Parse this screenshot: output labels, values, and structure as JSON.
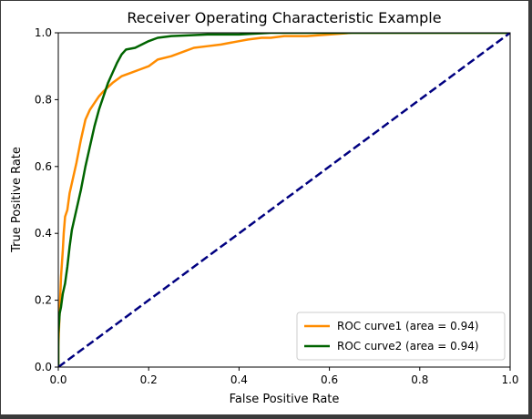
{
  "chart_data": {
    "type": "line",
    "title": "Receiver Operating Characteristic Example",
    "xlabel": "False Positive Rate",
    "ylabel": "True Positive Rate",
    "xlim": [
      0.0,
      1.0
    ],
    "ylim": [
      0.0,
      1.0
    ],
    "xticks": [
      "0.0",
      "0.2",
      "0.4",
      "0.6",
      "0.8",
      "1.0"
    ],
    "yticks": [
      "0.0",
      "0.2",
      "0.4",
      "0.6",
      "0.8",
      "1.0"
    ],
    "grid": false,
    "legend_position": "lower-right",
    "series": [
      {
        "name": "ROC curve1 (area = 0.94)",
        "color": "#ff8c00",
        "style": "solid",
        "x": [
          0.0,
          0.0,
          0.004,
          0.006,
          0.008,
          0.01,
          0.012,
          0.015,
          0.02,
          0.025,
          0.03,
          0.04,
          0.05,
          0.06,
          0.07,
          0.08,
          0.09,
          0.1,
          0.12,
          0.14,
          0.16,
          0.18,
          0.2,
          0.22,
          0.25,
          0.28,
          0.3,
          0.33,
          0.36,
          0.38,
          0.4,
          0.42,
          0.45,
          0.47,
          0.5,
          0.55,
          0.6,
          0.65,
          0.7,
          0.8,
          1.0
        ],
        "y": [
          0.0,
          0.06,
          0.2,
          0.27,
          0.31,
          0.35,
          0.4,
          0.45,
          0.47,
          0.52,
          0.55,
          0.61,
          0.68,
          0.74,
          0.77,
          0.79,
          0.81,
          0.825,
          0.85,
          0.87,
          0.88,
          0.89,
          0.9,
          0.92,
          0.93,
          0.945,
          0.955,
          0.96,
          0.965,
          0.97,
          0.975,
          0.98,
          0.985,
          0.985,
          0.99,
          0.99,
          0.995,
          1.0,
          1.0,
          1.0,
          1.0
        ]
      },
      {
        "name": "ROC curve2 (area = 0.94)",
        "color": "#006400",
        "style": "solid",
        "x": [
          0.0,
          0.0,
          0.003,
          0.006,
          0.01,
          0.015,
          0.02,
          0.025,
          0.03,
          0.04,
          0.05,
          0.06,
          0.07,
          0.08,
          0.09,
          0.1,
          0.11,
          0.12,
          0.13,
          0.14,
          0.15,
          0.17,
          0.2,
          0.22,
          0.25,
          0.33,
          0.4,
          0.47,
          0.6,
          0.7,
          1.0
        ],
        "y": [
          0.0,
          0.1,
          0.16,
          0.18,
          0.22,
          0.25,
          0.3,
          0.36,
          0.41,
          0.47,
          0.53,
          0.6,
          0.66,
          0.72,
          0.77,
          0.81,
          0.85,
          0.88,
          0.91,
          0.935,
          0.95,
          0.955,
          0.975,
          0.985,
          0.99,
          0.995,
          0.995,
          1.0,
          1.0,
          1.0,
          1.0
        ]
      },
      {
        "name": "",
        "color": "#000080",
        "style": "dashed",
        "x": [
          0.0,
          1.0
        ],
        "y": [
          0.0,
          1.0
        ]
      }
    ]
  }
}
